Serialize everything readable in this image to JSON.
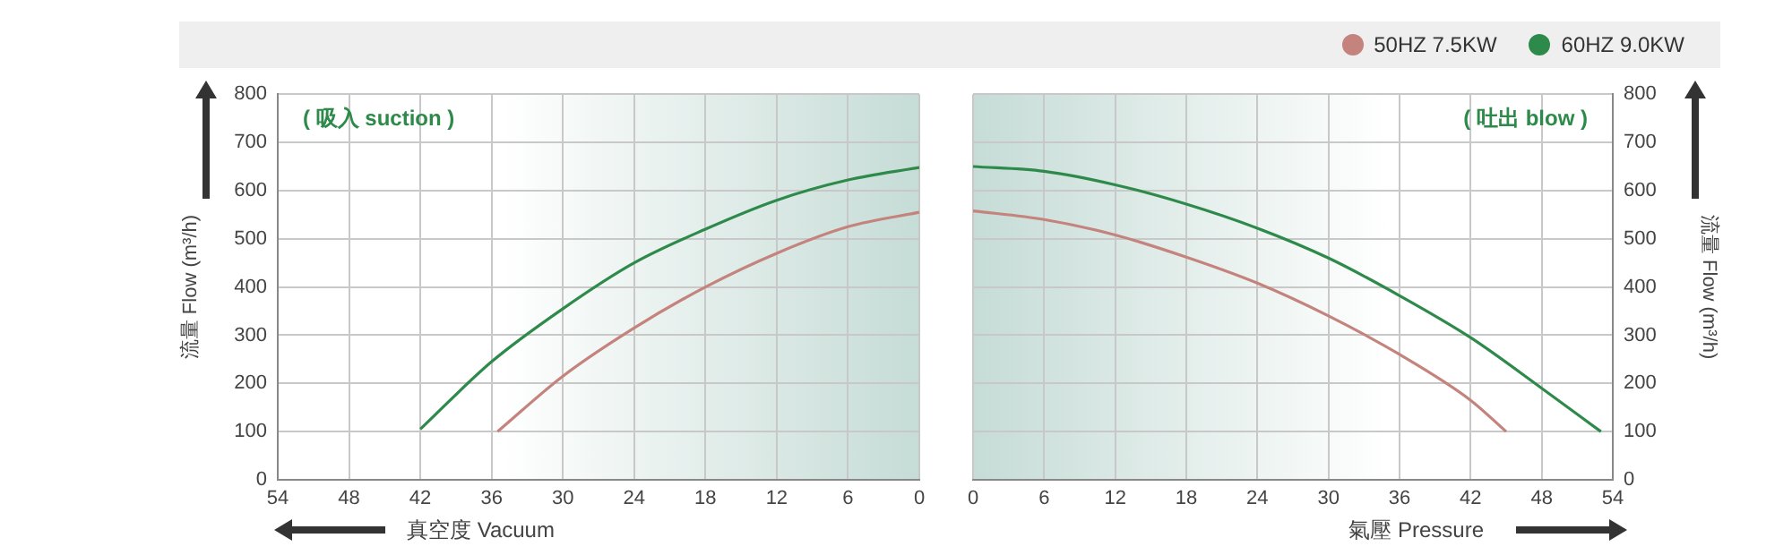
{
  "chart_data": [
    {
      "type": "line",
      "annotations": [
        "( 吸入 suction )"
      ],
      "xlabel": "真空度 Vacuum",
      "ylabel": "流量 Flow (m³/h)",
      "xlim": [
        54,
        0
      ],
      "xticks": [
        54,
        48,
        42,
        36,
        30,
        24,
        18,
        12,
        6,
        0
      ],
      "ylim": [
        0,
        800
      ],
      "yticks": [
        0,
        100,
        200,
        300,
        400,
        500,
        600,
        700,
        800
      ],
      "grid": true,
      "marker": "none",
      "series": [
        {
          "color": "#c4837c",
          "x": [
            35.5,
            30,
            24,
            18,
            12,
            6,
            0
          ],
          "values": [
            100,
            215,
            315,
            400,
            470,
            525,
            555
          ]
        },
        {
          "color": "#2e8a4a",
          "x": [
            42,
            36,
            30,
            24,
            18,
            12,
            6,
            0
          ],
          "values": [
            105,
            245,
            355,
            450,
            520,
            580,
            622,
            648
          ]
        }
      ]
    },
    {
      "type": "line",
      "annotations": [
        "( 吐出 blow )"
      ],
      "xlabel": "氣壓 Pressure",
      "ylabel": "流量 Flow (m³/h)",
      "xlim": [
        0,
        54
      ],
      "xticks": [
        0,
        6,
        12,
        18,
        24,
        30,
        36,
        42,
        48,
        54
      ],
      "ylim": [
        0,
        800
      ],
      "yticks": [
        0,
        100,
        200,
        300,
        400,
        500,
        600,
        700,
        800
      ],
      "grid": true,
      "marker": "none",
      "legend": "top right",
      "series": [
        {
          "name": "50HZ 7.5KW",
          "color": "#c4837c",
          "x": [
            0,
            6,
            12,
            18,
            24,
            30,
            36,
            42,
            45
          ],
          "values": [
            558,
            540,
            508,
            462,
            408,
            340,
            260,
            165,
            100
          ]
        },
        {
          "name": "60HZ 9.0KW",
          "color": "#2e8a4a",
          "x": [
            0,
            6,
            12,
            18,
            24,
            30,
            36,
            42,
            48,
            53
          ],
          "values": [
            650,
            640,
            612,
            572,
            522,
            460,
            382,
            295,
            190,
            100
          ]
        }
      ]
    }
  ]
}
